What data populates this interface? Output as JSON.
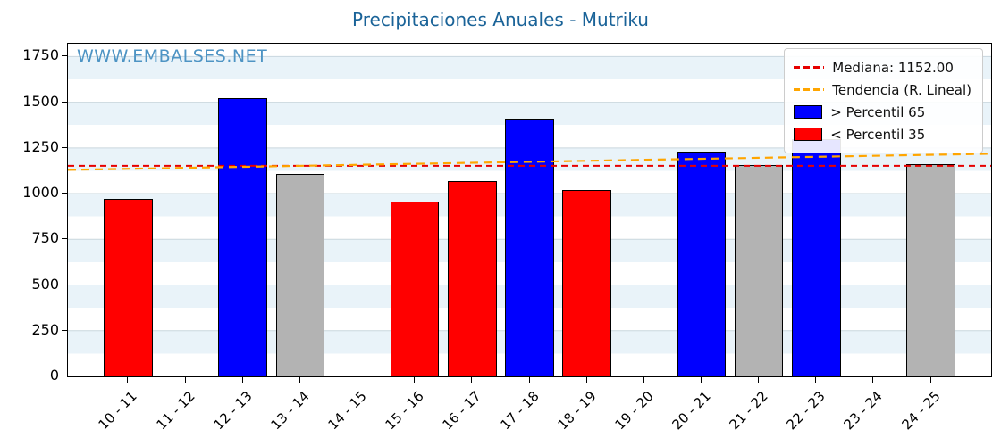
{
  "title": "Precipitaciones Anuales - Mutriku",
  "watermark": "WWW.EMBALSES.NET",
  "legend": {
    "median_label": "Mediana: 1152.00",
    "trend_label": "Tendencia (R. Lineal)",
    "p65_label": "> Percentil 65",
    "p35_label": "< Percentil 35"
  },
  "colors": {
    "title": "#1a6398",
    "watermark": "#4e94c4",
    "blue": "#0000ff",
    "red": "#ff0000",
    "gray": "#b3b3b3",
    "median": "#e60000",
    "trend": "#ffa500",
    "grid": "#c9d7de"
  },
  "chart_data": {
    "type": "bar",
    "title": "Precipitaciones Anuales - Mutriku",
    "xlabel": "",
    "ylabel": "",
    "categories": [
      "10 - 11",
      "11 - 12",
      "12 - 13",
      "13 - 14",
      "14 - 15",
      "15 - 16",
      "16 - 17",
      "17 - 18",
      "18 - 19",
      "19 - 20",
      "20 - 21",
      "21 - 22",
      "22 - 23",
      "23 - 24",
      "24 - 25"
    ],
    "values": [
      970,
      null,
      1520,
      1110,
      null,
      955,
      1070,
      1410,
      1020,
      null,
      1230,
      1155,
      1300,
      null,
      1160
    ],
    "bar_colors": [
      "red",
      null,
      "blue",
      "gray",
      null,
      "red",
      "red",
      "blue",
      "red",
      null,
      "blue",
      "gray",
      "blue",
      null,
      "gray"
    ],
    "yticks": [
      0,
      250,
      500,
      750,
      1000,
      1250,
      1500,
      1750
    ],
    "ylim": [
      0,
      1820
    ],
    "median": 1152,
    "trend": {
      "start": 1130,
      "end": 1218
    },
    "grid": true,
    "legend_position": "upper right",
    "legend_entries": [
      "Mediana: 1152.00",
      "Tendencia (R. Lineal)",
      "> Percentil 65",
      "< Percentil 35"
    ]
  }
}
